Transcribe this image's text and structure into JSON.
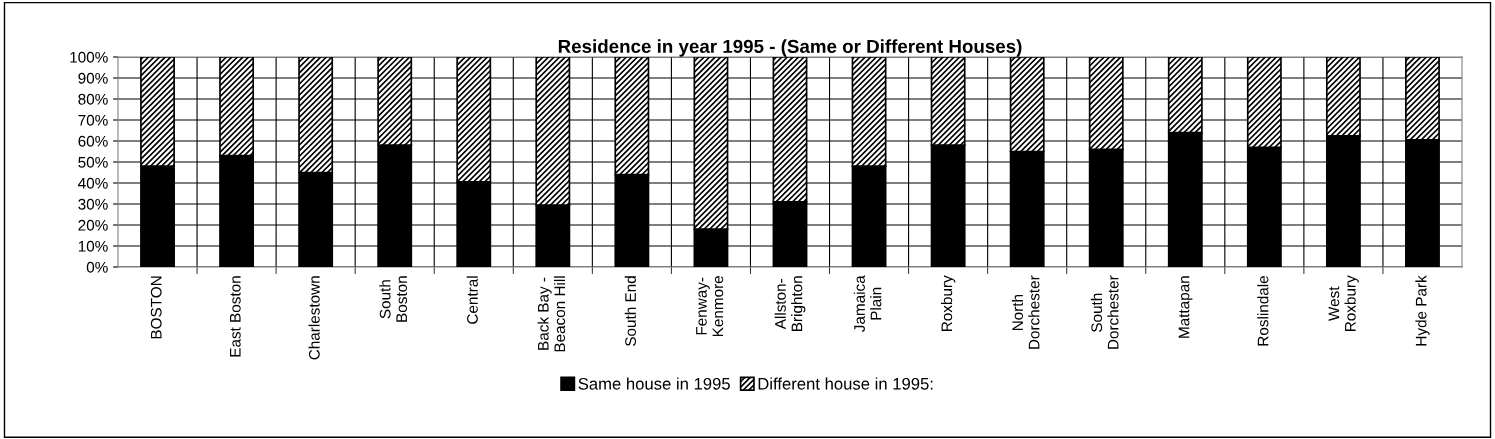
{
  "chart_data": {
    "type": "bar",
    "title": "Residence in year 1995 - (Same or Different Houses)",
    "stacked": true,
    "categories": [
      "BOSTON",
      "East Boston",
      "Charlestown",
      "South\nBoston",
      "Central",
      "Back Bay -\nBeacon Hill",
      "South End",
      "Fenway-\nKenmore",
      "Allston-\nBrighton",
      "Jamaica\nPlain",
      "Roxbury",
      "North\nDorchester",
      "South\nDorchester",
      "Mattapan",
      "Roslindale",
      "West\nRoxbury",
      "Hyde Park"
    ],
    "series": [
      {
        "name": "Same house in 1995",
        "color": "#000000",
        "values": [
          48,
          53,
          45,
          58,
          40.5,
          29.5,
          44,
          18,
          31,
          48,
          58,
          55,
          56,
          64,
          57,
          62.5,
          60.5
        ]
      },
      {
        "name": "Different house in 1995:",
        "color": "#000000",
        "values": [
          52,
          47,
          55,
          42,
          59.5,
          70.5,
          56,
          82,
          69,
          52,
          42,
          45,
          44,
          36,
          43,
          37.5,
          39.5
        ]
      }
    ],
    "ylim": [
      0,
      100
    ],
    "yticks": [
      {
        "value": 0,
        "label": "0%"
      },
      {
        "value": 10,
        "label": "10%"
      },
      {
        "value": 20,
        "label": "20%"
      },
      {
        "value": 30,
        "label": "30%"
      },
      {
        "value": 40,
        "label": "40%"
      },
      {
        "value": 50,
        "label": "50%"
      },
      {
        "value": 60,
        "label": "60%"
      },
      {
        "value": 70,
        "label": "70%"
      },
      {
        "value": 80,
        "label": "80%"
      },
      {
        "value": 90,
        "label": "90%"
      },
      {
        "value": 100,
        "label": "100%"
      }
    ],
    "grid": true,
    "legend": "bottom"
  }
}
